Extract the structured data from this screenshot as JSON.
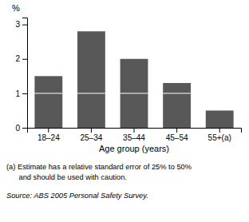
{
  "chart_data": {
    "type": "bar",
    "categories": [
      "18–24",
      "25–34",
      "35–44",
      "45–54",
      "55+(a)"
    ],
    "values": [
      1.5,
      2.8,
      2.0,
      1.3,
      0.5
    ],
    "color": "#585858",
    "line_y": 1.0,
    "line_color": "#ffffff",
    "ylim": [
      0,
      3.2
    ],
    "yticks": [
      0,
      1,
      2,
      3
    ],
    "xlabel": "Age group (years)",
    "ylabel": "%",
    "annotations": [
      "(a) Estimate has a relative standard error of 25% to 50%",
      "      and should be used with caution."
    ],
    "source": "Source: ABS 2005 Personal Safety Survey.",
    "grid": false
  }
}
